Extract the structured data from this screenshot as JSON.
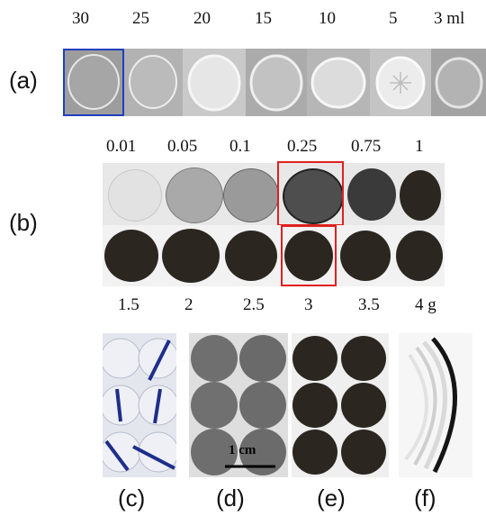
{
  "panel_labels": {
    "a": "(a)",
    "b": "(b)",
    "c": "(c)",
    "d": "(d)",
    "e": "(e)",
    "f": "(f)"
  },
  "row_a": {
    "volumes": [
      "30",
      "25",
      "20",
      "15",
      "10",
      "5",
      "3 ml"
    ]
  },
  "row_b": {
    "top_masses": [
      "0.01",
      "0.05",
      "0.1",
      "0.25",
      "0.75",
      "1"
    ],
    "bottom_masses": [
      "1.5",
      "2",
      "2.5",
      "3",
      "3.5",
      "4 g"
    ]
  },
  "scale_bar": {
    "label": "1 cm"
  },
  "colors": {
    "selection_a": "#1f3fbf",
    "selection_b": "#e02020",
    "dark_pad": "#2b2620"
  }
}
